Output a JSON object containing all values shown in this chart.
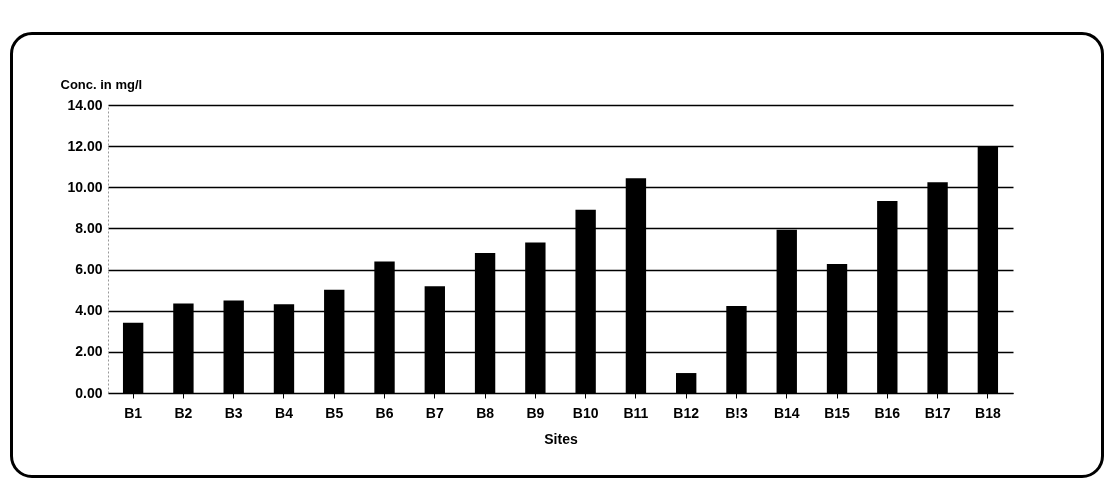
{
  "chart_data": {
    "type": "bar",
    "xlabel": "Sites",
    "ylabel": "Conc. in mg/l",
    "categories": [
      "B1",
      "B2",
      "B3",
      "B4",
      "B5",
      "B6",
      "B7",
      "B8",
      "B9",
      "B10",
      "B11",
      "B12",
      "B!3",
      "B14",
      "B15",
      "B16",
      "B17",
      "B18"
    ],
    "values": [
      3.42,
      4.35,
      4.5,
      4.32,
      5.02,
      6.39,
      5.19,
      6.81,
      7.32,
      8.91,
      10.44,
      0.97,
      4.23,
      7.93,
      6.27,
      9.33,
      10.25,
      12.0
    ],
    "color": "#000000",
    "ylim": [
      0,
      14
    ],
    "yticks": [
      {
        "value": 0,
        "label": "0.00"
      },
      {
        "value": 2,
        "label": "2.00"
      },
      {
        "value": 4,
        "label": "4.00"
      },
      {
        "value": 6,
        "label": "6.00"
      },
      {
        "value": 8,
        "label": "8.00"
      },
      {
        "value": 10,
        "label": "10.00"
      },
      {
        "value": 12,
        "label": "12.00"
      },
      {
        "value": 14,
        "label": "14.00"
      }
    ],
    "grid": "y"
  }
}
